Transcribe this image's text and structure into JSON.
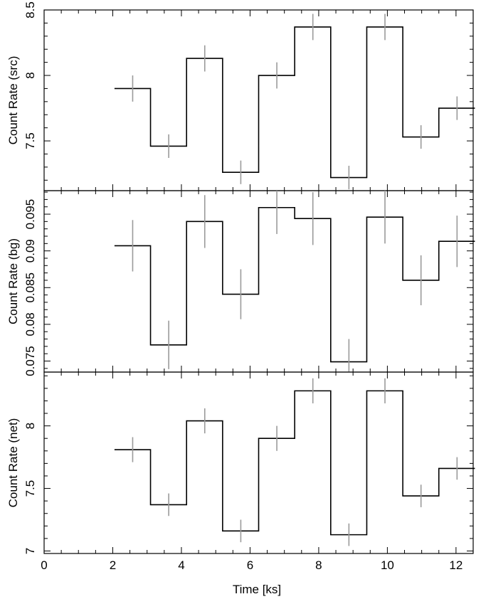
{
  "chart_data": {
    "type": "line",
    "layout": "3 stacked panels sharing the x axis",
    "xlabel": "Time [ks]",
    "xlim": [
      0,
      12.5
    ],
    "xticks": [
      0,
      2,
      4,
      6,
      8,
      10,
      12
    ],
    "bins": {
      "edges": [
        2.05,
        3.1,
        4.15,
        5.2,
        6.25,
        7.3,
        8.35,
        9.4,
        10.45,
        11.5,
        12.55
      ],
      "centers": [
        2.58,
        3.63,
        4.68,
        5.73,
        6.78,
        7.83,
        8.88,
        9.93,
        10.98,
        12.03
      ]
    },
    "panels": [
      {
        "ylabel": "Count Rate (src)",
        "ylim": [
          7.12,
          8.5
        ],
        "yticks": [
          "7.5",
          "8",
          "8.5"
        ],
        "values": [
          7.9,
          7.46,
          8.13,
          7.26,
          8.0,
          8.37,
          7.22,
          8.37,
          7.53,
          7.75
        ],
        "errors": [
          0.1,
          0.09,
          0.1,
          0.09,
          0.1,
          0.1,
          0.09,
          0.1,
          0.09,
          0.09
        ]
      },
      {
        "ylabel": "Count Rate (bg)",
        "ylim": [
          0.0735,
          0.0982
        ],
        "yticks": [
          "0.075",
          "0.08",
          "0.085",
          "0.09",
          "0.095"
        ],
        "values": [
          0.0907,
          0.0772,
          0.094,
          0.0841,
          0.0959,
          0.0944,
          0.0749,
          0.0946,
          0.086,
          0.0913
        ],
        "errors": [
          0.0035,
          0.0033,
          0.0036,
          0.0034,
          0.0036,
          0.0036,
          0.0031,
          0.0036,
          0.0034,
          0.0035
        ]
      },
      {
        "ylabel": "Count Rate (net)",
        "ylim": [
          6.98,
          8.43
        ],
        "yticks": [
          "7",
          "7.5",
          "8"
        ],
        "values": [
          7.81,
          7.37,
          8.04,
          7.16,
          7.9,
          8.28,
          7.13,
          8.28,
          7.44,
          7.66
        ],
        "errors": [
          0.1,
          0.09,
          0.1,
          0.09,
          0.1,
          0.1,
          0.09,
          0.1,
          0.09,
          0.09
        ]
      }
    ],
    "colors": {
      "step": "#000000",
      "errorbar": "#9a9a9a",
      "frame": "#000000"
    }
  }
}
